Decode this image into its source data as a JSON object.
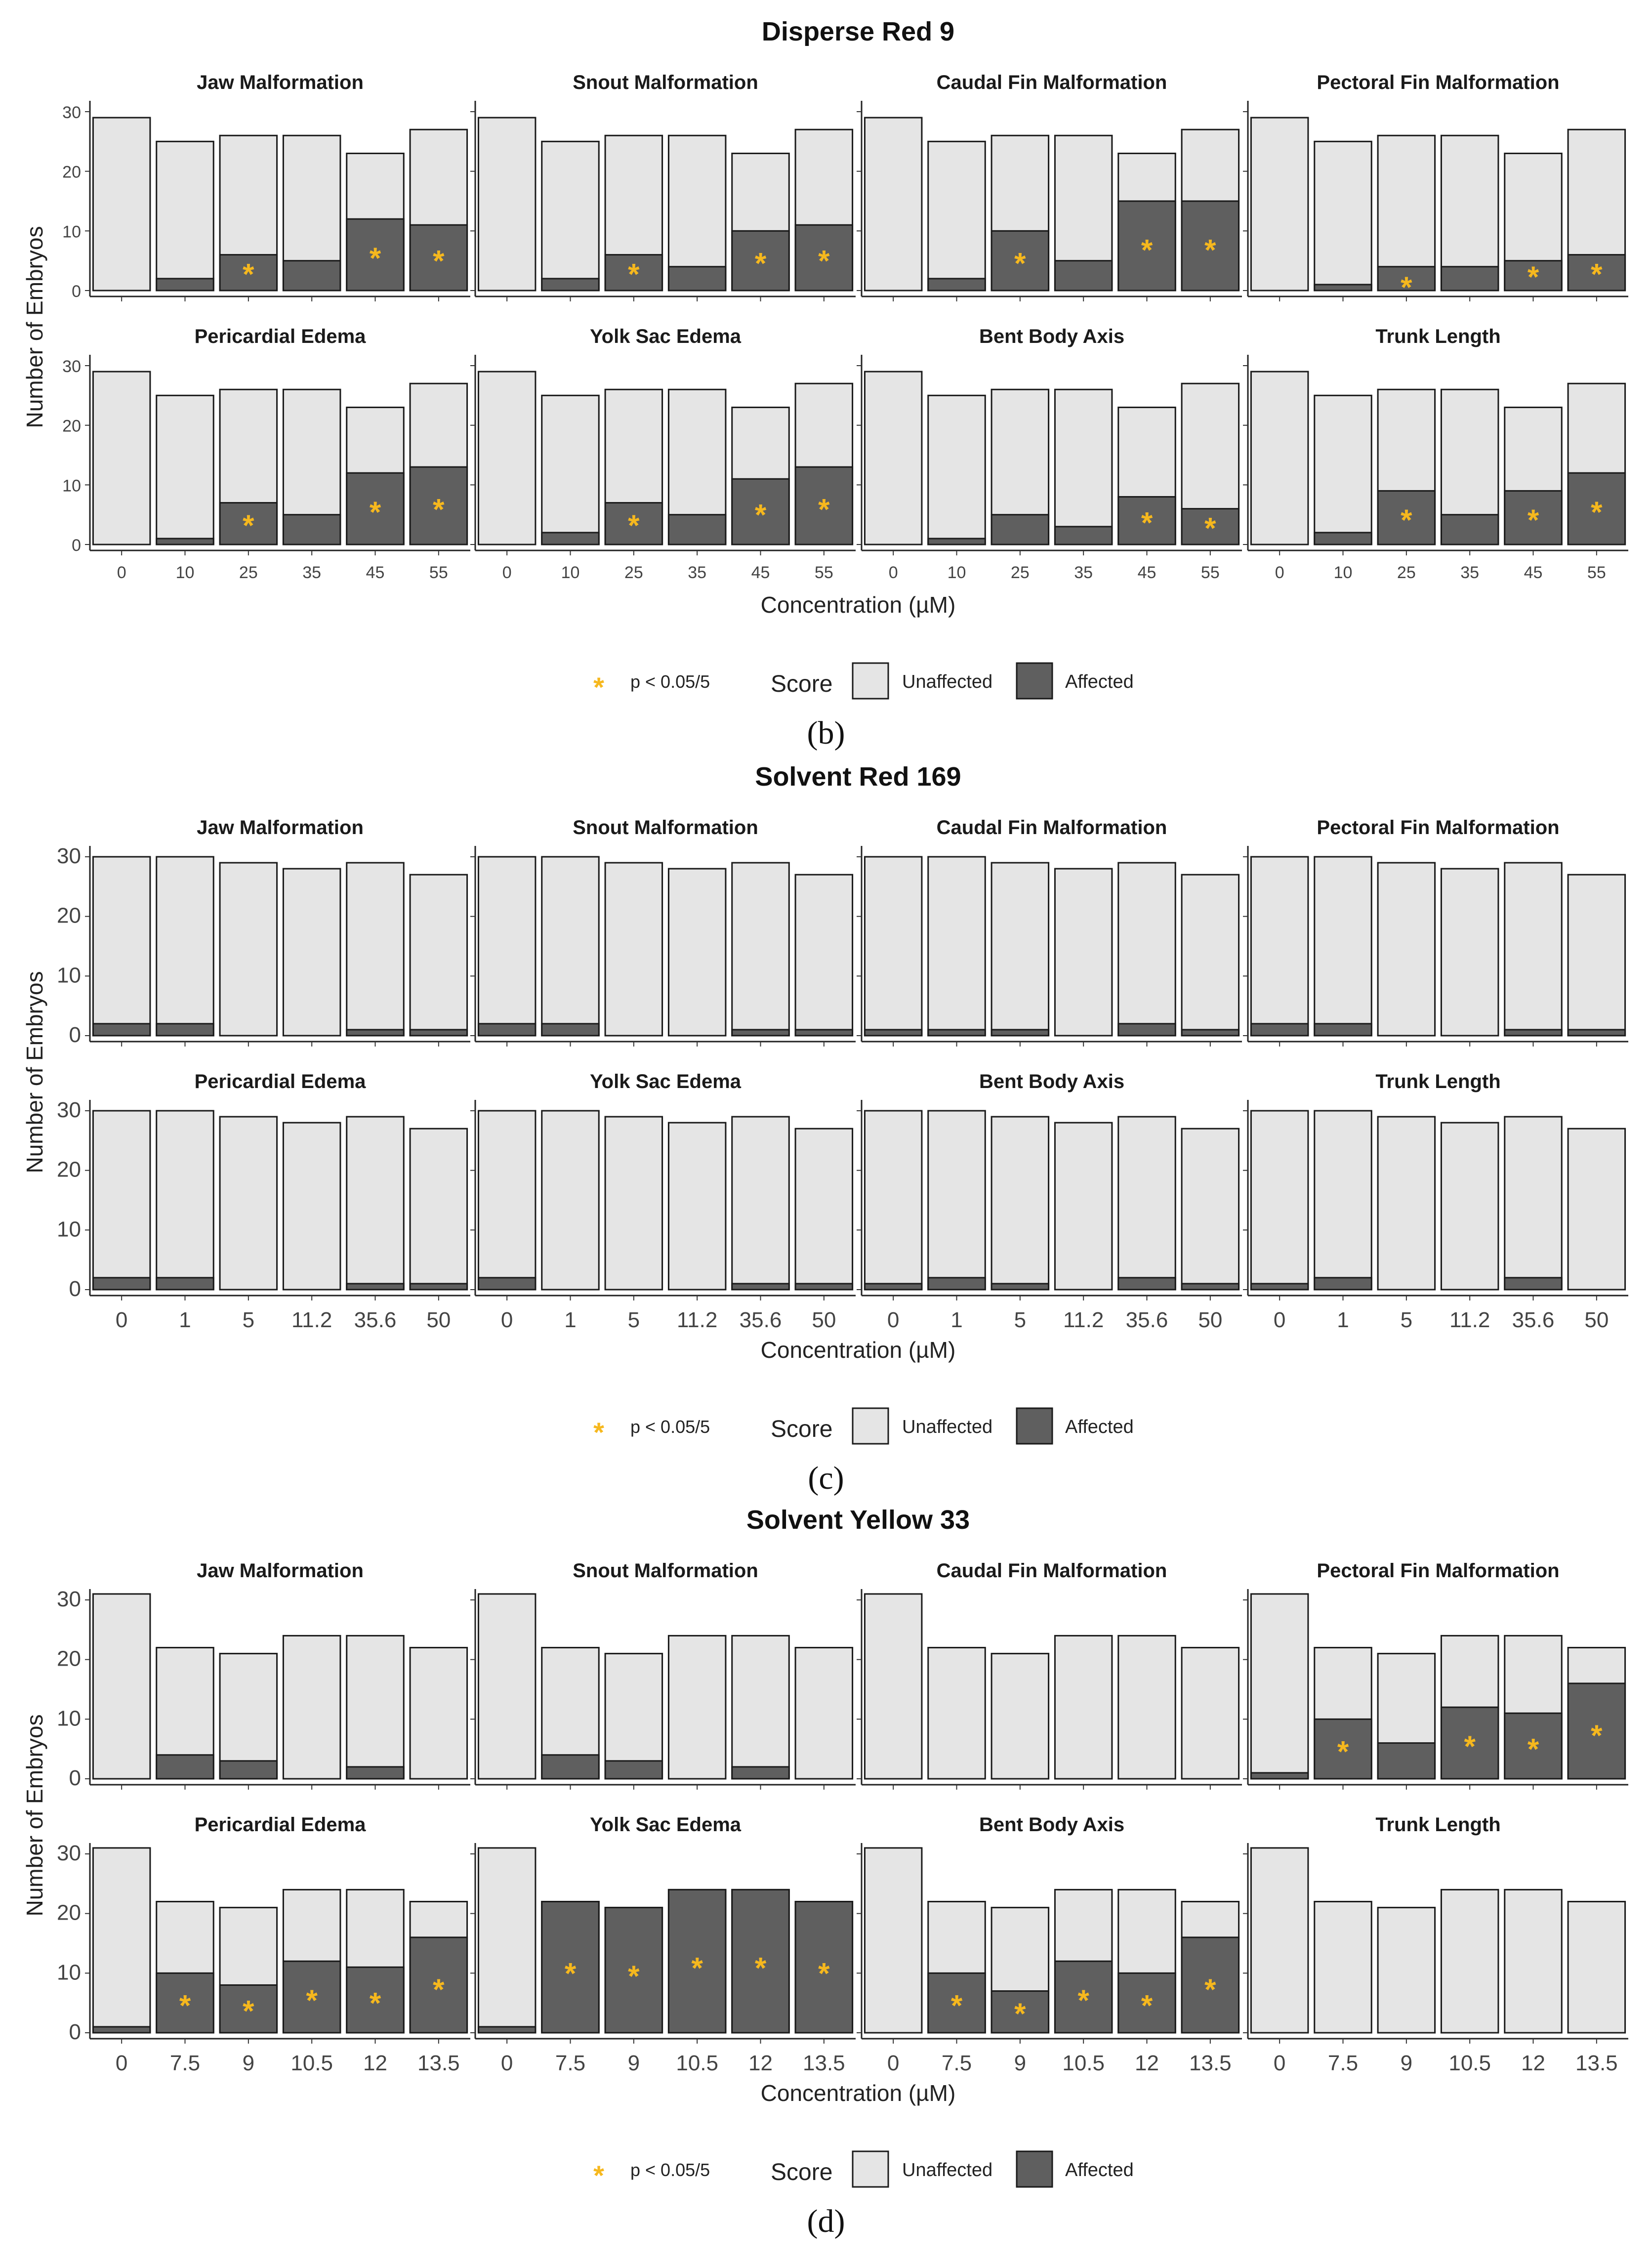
{
  "panel_labels": [
    "(b)",
    "(c)",
    "(d)"
  ],
  "legend": {
    "significance_label": "p < 0.05/5",
    "score_title": "Score",
    "unaffected_label": "Unaffected",
    "affected_label": "Affected"
  },
  "colors": {
    "unaffected": "#e5e5e5",
    "affected": "#5f5f5f",
    "star": "#f6b81e",
    "border": "#1a1a1a"
  },
  "chart_data": [
    {
      "type": "bar",
      "stacked": true,
      "title": "Disperse Red 9",
      "xlabel": "Concentration (µM)",
      "ylabel": "Number of Embryos",
      "ylim": [
        0,
        30
      ],
      "yticks": [
        0,
        10,
        20,
        30
      ],
      "categories": [
        "0",
        "10",
        "25",
        "35",
        "45",
        "55"
      ],
      "totals": [
        29,
        25,
        26,
        26,
        23,
        27
      ],
      "panels": [
        {
          "title": "Jaw Malformation",
          "affected": [
            0,
            2,
            6,
            5,
            12,
            11
          ],
          "significant": [
            false,
            false,
            true,
            false,
            true,
            true
          ]
        },
        {
          "title": "Snout Malformation",
          "affected": [
            0,
            2,
            6,
            4,
            10,
            11
          ],
          "significant": [
            false,
            false,
            true,
            false,
            true,
            true
          ]
        },
        {
          "title": "Caudal Fin Malformation",
          "affected": [
            0,
            2,
            10,
            5,
            15,
            15
          ],
          "significant": [
            false,
            false,
            true,
            false,
            true,
            true
          ]
        },
        {
          "title": "Pectoral Fin Malformation",
          "affected": [
            0,
            1,
            4,
            4,
            5,
            6
          ],
          "significant": [
            false,
            false,
            true,
            false,
            true,
            true
          ]
        },
        {
          "title": "Pericardial Edema",
          "affected": [
            0,
            1,
            7,
            5,
            12,
            13
          ],
          "significant": [
            false,
            false,
            true,
            false,
            true,
            true
          ]
        },
        {
          "title": "Yolk Sac Edema",
          "affected": [
            0,
            2,
            7,
            5,
            11,
            13
          ],
          "significant": [
            false,
            false,
            true,
            false,
            true,
            true
          ]
        },
        {
          "title": "Bent Body Axis",
          "affected": [
            0,
            1,
            5,
            3,
            8,
            6
          ],
          "significant": [
            false,
            false,
            false,
            false,
            true,
            true
          ]
        },
        {
          "title": "Trunk Length",
          "affected": [
            0,
            2,
            9,
            5,
            9,
            12
          ],
          "significant": [
            false,
            false,
            true,
            false,
            true,
            true
          ]
        }
      ]
    },
    {
      "type": "bar",
      "stacked": true,
      "title": "Solvent Red 169",
      "xlabel": "Concentration (µM)",
      "ylabel": "Number of Embryos",
      "ylim": [
        0,
        30
      ],
      "yticks": [
        0,
        10,
        20,
        30
      ],
      "categories": [
        "0",
        "1",
        "5",
        "11.2",
        "35.6",
        "50"
      ],
      "totals": [
        30,
        30,
        29,
        28,
        29,
        27
      ],
      "panels": [
        {
          "title": "Jaw Malformation",
          "affected": [
            2,
            2,
            0,
            0,
            1,
            1
          ],
          "significant": [
            false,
            false,
            false,
            false,
            false,
            false
          ]
        },
        {
          "title": "Snout Malformation",
          "affected": [
            2,
            2,
            0,
            0,
            1,
            1
          ],
          "significant": [
            false,
            false,
            false,
            false,
            false,
            false
          ]
        },
        {
          "title": "Caudal Fin Malformation",
          "affected": [
            1,
            1,
            1,
            0,
            2,
            1
          ],
          "significant": [
            false,
            false,
            false,
            false,
            false,
            false
          ]
        },
        {
          "title": "Pectoral Fin Malformation",
          "affected": [
            2,
            2,
            0,
            0,
            1,
            1
          ],
          "significant": [
            false,
            false,
            false,
            false,
            false,
            false
          ]
        },
        {
          "title": "Pericardial Edema",
          "affected": [
            2,
            2,
            0,
            0,
            1,
            1
          ],
          "significant": [
            false,
            false,
            false,
            false,
            false,
            false
          ]
        },
        {
          "title": "Yolk Sac Edema",
          "affected": [
            2,
            0,
            0,
            0,
            1,
            1
          ],
          "significant": [
            false,
            false,
            false,
            false,
            false,
            false
          ]
        },
        {
          "title": "Bent Body Axis",
          "affected": [
            1,
            2,
            1,
            0,
            2,
            1
          ],
          "significant": [
            false,
            false,
            false,
            false,
            false,
            false
          ]
        },
        {
          "title": "Trunk Length",
          "affected": [
            1,
            2,
            0,
            0,
            2,
            0
          ],
          "significant": [
            false,
            false,
            false,
            false,
            false,
            false
          ]
        }
      ]
    },
    {
      "type": "bar",
      "stacked": true,
      "title": "Solvent Yellow 33",
      "xlabel": "Concentration (µM)",
      "ylabel": "Number of Embryos",
      "ylim": [
        0,
        30
      ],
      "yticks": [
        0,
        10,
        20,
        30
      ],
      "categories": [
        "0",
        "7.5",
        "9",
        "10.5",
        "12",
        "13.5"
      ],
      "totals": [
        31,
        22,
        21,
        24,
        24,
        22
      ],
      "panels": [
        {
          "title": "Jaw Malformation",
          "affected": [
            0,
            4,
            3,
            0,
            2,
            0
          ],
          "significant": [
            false,
            false,
            false,
            false,
            false,
            false
          ]
        },
        {
          "title": "Snout Malformation",
          "affected": [
            0,
            4,
            3,
            0,
            2,
            0
          ],
          "significant": [
            false,
            false,
            false,
            false,
            false,
            false
          ]
        },
        {
          "title": "Caudal Fin Malformation",
          "affected": [
            0,
            0,
            0,
            0,
            0,
            0
          ],
          "significant": [
            false,
            false,
            false,
            false,
            false,
            false
          ]
        },
        {
          "title": "Pectoral Fin Malformation",
          "affected": [
            1,
            10,
            6,
            12,
            11,
            16
          ],
          "significant": [
            false,
            true,
            false,
            true,
            true,
            true
          ]
        },
        {
          "title": "Pericardial Edema",
          "affected": [
            1,
            10,
            8,
            12,
            11,
            16
          ],
          "significant": [
            false,
            true,
            true,
            true,
            true,
            true
          ]
        },
        {
          "title": "Yolk Sac Edema",
          "affected": [
            1,
            22,
            21,
            24,
            24,
            22
          ],
          "significant": [
            false,
            true,
            true,
            true,
            true,
            true
          ]
        },
        {
          "title": "Bent Body Axis",
          "affected": [
            0,
            10,
            7,
            12,
            10,
            16
          ],
          "significant": [
            false,
            true,
            true,
            true,
            true,
            true
          ]
        },
        {
          "title": "Trunk Length",
          "affected": [
            0,
            0,
            0,
            0,
            0,
            0
          ],
          "significant": [
            false,
            false,
            false,
            false,
            false,
            false
          ]
        }
      ]
    }
  ]
}
